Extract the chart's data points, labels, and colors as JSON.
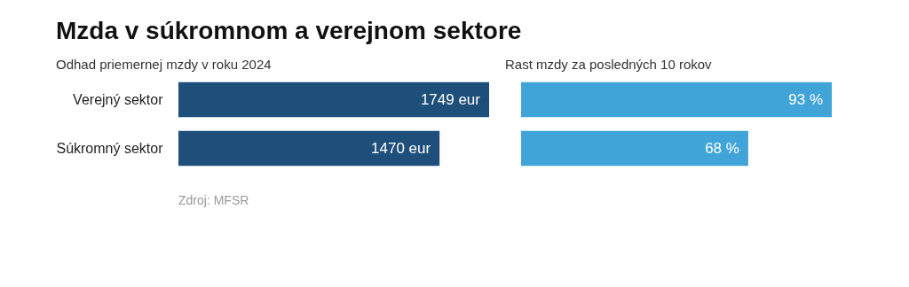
{
  "chart_data": [
    {
      "type": "bar",
      "orientation": "horizontal",
      "title": "Mzda v súkromnom a verejnom sektore",
      "subtitle": "Odhad priemernej mzdy v roku 2024",
      "categories": [
        "Verejný sektor",
        "Súkromný sektor"
      ],
      "values": [
        1749,
        1470
      ],
      "colors": [
        "#1e4f7b",
        "#1e4f7b"
      ],
      "value_labels": [
        "1749 eur",
        "1470 eur"
      ],
      "annotations": [
        "Zdroj: MFSR"
      ]
    },
    {
      "type": "bar",
      "orientation": "horizontal",
      "subtitle": "Rast mzdy za posledných 10 rokov",
      "categories": [
        null,
        null
      ],
      "values": [
        93,
        68
      ],
      "colors": [
        "#40a4d8",
        "#40a4d8"
      ],
      "value_labels": [
        "93 %",
        "68 %"
      ]
    }
  ]
}
